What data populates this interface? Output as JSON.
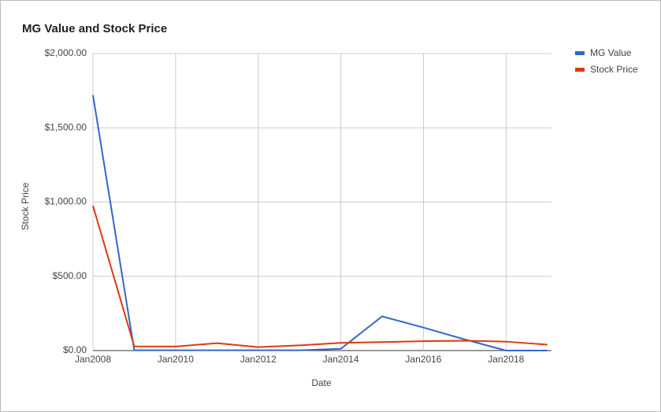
{
  "chart_data": {
    "type": "line",
    "title": "MG Value and Stock Price",
    "x_label": "Date",
    "y_label": "Stock Price",
    "x": [
      2008,
      2009,
      2010,
      2011,
      2012,
      2013,
      2014,
      2015,
      2016,
      2017,
      2018,
      2019
    ],
    "series": [
      {
        "name": "MG Value",
        "color": "#3366cc",
        "values": [
          1720,
          2,
          2,
          2,
          2,
          2,
          12,
          230,
          155,
          75,
          0,
          0
        ]
      },
      {
        "name": "Stock Price",
        "color": "#dc3912",
        "values": [
          975,
          28,
          27,
          50,
          23,
          35,
          52,
          57,
          63,
          66,
          60,
          40
        ]
      }
    ],
    "xlim": [
      2008,
      2019.1
    ],
    "xticks": [
      {
        "value": 2008,
        "label": "Jan2008"
      },
      {
        "value": 2010,
        "label": "Jan2010"
      },
      {
        "value": 2012,
        "label": "Jan2012"
      },
      {
        "value": 2014,
        "label": "Jan2014"
      },
      {
        "value": 2016,
        "label": "Jan2016"
      },
      {
        "value": 2018,
        "label": "Jan2018"
      }
    ],
    "ylim": [
      0,
      2000
    ],
    "yticks": [
      {
        "value": 0,
        "label": "$0.00"
      },
      {
        "value": 500,
        "label": "$500.00"
      },
      {
        "value": 1000,
        "label": "$1,000.00"
      },
      {
        "value": 1500,
        "label": "$1,500.00"
      },
      {
        "value": 2000,
        "label": "$2,000.00"
      }
    ],
    "grid": true,
    "legend": "right"
  }
}
